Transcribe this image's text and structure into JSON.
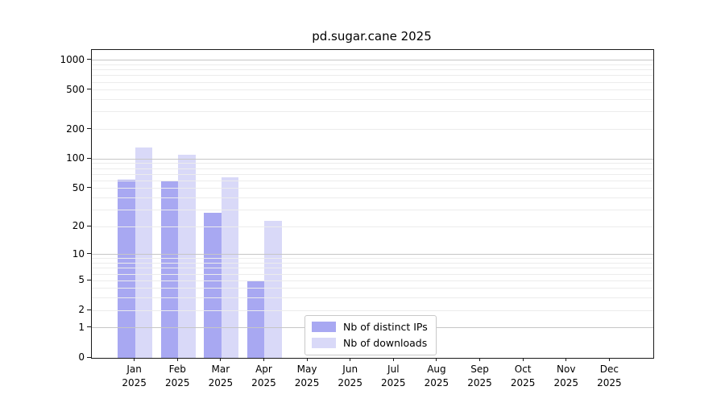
{
  "chart_data": {
    "type": "bar",
    "title": "pd.sugar.cane 2025",
    "months": [
      "Jan",
      "Feb",
      "Mar",
      "Apr",
      "May",
      "Jun",
      "Jul",
      "Aug",
      "Sep",
      "Oct",
      "Nov",
      "Dec"
    ],
    "year": "2025",
    "series": [
      {
        "name": "Nb of distinct IPs",
        "color": "#a8a8f2",
        "values": [
          61,
          60,
          28,
          5,
          0,
          0,
          0,
          0,
          0,
          0,
          0,
          0
        ]
      },
      {
        "name": "Nb of downloads",
        "color": "#d9d9f8",
        "values": [
          130,
          110,
          65,
          23,
          0,
          0,
          0,
          0,
          0,
          0,
          0,
          0
        ]
      }
    ],
    "y_axis": {
      "scale": "log1p",
      "tick_values": [
        0,
        1,
        2,
        5,
        10,
        20,
        50,
        100,
        200,
        500,
        1000
      ],
      "top_value": 1270,
      "major_gridlines": [
        1,
        10,
        100,
        1000
      ],
      "minor_gridlines": [
        2,
        3,
        4,
        5,
        6,
        7,
        8,
        9,
        20,
        30,
        40,
        50,
        60,
        70,
        80,
        90,
        200,
        300,
        400,
        500,
        600,
        700,
        800,
        900
      ]
    },
    "xlabel": "",
    "ylabel": "",
    "grid": "horizontal",
    "legend_position": "lower-center-inside",
    "colors": {
      "major_grid": "#c6c6c6",
      "minor_grid": "#ececec",
      "axis": "#1a1a1a",
      "background": "#ffffff"
    }
  }
}
